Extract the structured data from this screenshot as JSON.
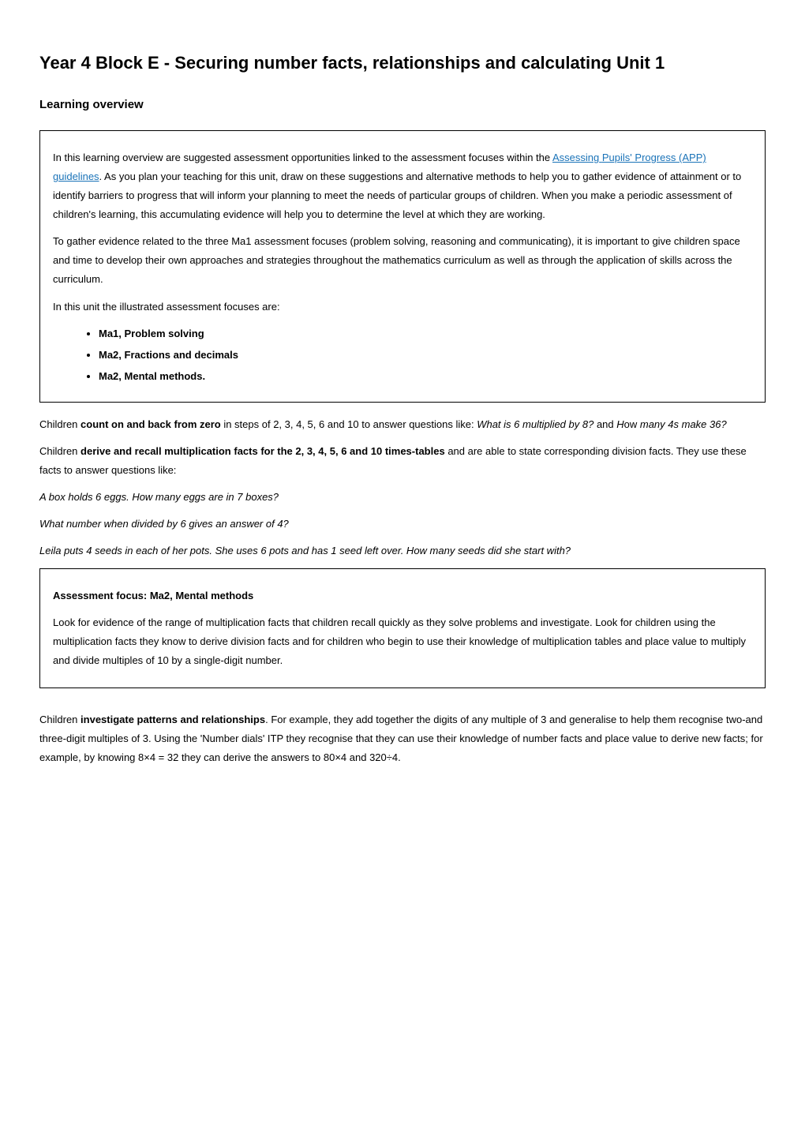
{
  "title": "Year 4 Block E - Securing number facts, relationships and calculating Unit 1",
  "section_heading": "Learning overview",
  "box1": {
    "para1_before_link": "In this learning overview are suggested assessment opportunities linked to the assessment focuses within the ",
    "link_text_line1": "Assessing",
    "link_text_line2": "Pupils' Progress (APP) guidelines",
    "para1_after_link": ". As you plan your teaching for this unit, draw on these suggestions and alternative methods to help you to gather evidence of attainment or to identify barriers to progress that will inform your planning to meet the needs of particular groups of children. When you make a periodic assessment of children's learning, this accumulating evidence will help you to determine the level at which they are working.",
    "para2": "To gather evidence related to the three Ma1 assessment focuses (problem solving, reasoning and communicating), it is important to give children space and time to develop their own approaches and strategies throughout the mathematics curriculum as well as through the application of skills across the curriculum.",
    "para3": "In this unit the illustrated assessment focuses are:",
    "bullets": [
      "Ma1, Problem solving",
      "Ma2, Fractions and decimals",
      "Ma2, Mental methods."
    ]
  },
  "para_count": {
    "prefix": "Children ",
    "bold": "count on and back from zero",
    "mid": " in steps of 2, 3, 4, 5, 6 and 10 to answer questions like: ",
    "italic1": "What is 6 multiplied by 8?",
    "and": " and ",
    "italic2_prefix": "H",
    "italic2_rest": "ow ",
    "italic3": "many 4s make 36?"
  },
  "para_derive": {
    "prefix": "Children ",
    "bold": "derive and recall multiplication facts for the 2, 3, 4, 5, 6 and 10 times-tables",
    "suffix": " and are able to state corresponding division facts. They use these facts to answer questions like:"
  },
  "examples": {
    "line1": "A box holds 6 eggs. How many eggs are in 7 boxes?",
    "line2": "What number when divided by 6 gives an answer of 4?",
    "line3": "Leila puts 4 seeds in each of her pots. She uses 6 pots and has 1 seed left over. How many seeds did she start with?"
  },
  "box2": {
    "heading": "Assessment focus: Ma2, Mental methods",
    "body": "Look for evidence of the range of multiplication facts that children recall quickly as they solve problems and investigate. Look for children using the multiplication facts they know to derive division facts and for children who begin to use their knowledge of multiplication tables and place value to multiply and divide multiples of 10 by a single-digit number."
  },
  "para_investigate": {
    "prefix": "Children ",
    "bold": "investigate patterns and relationships",
    "suffix": ". For example, they add together the digits of any multiple of 3 and generalise to help them recognise two-and three-digit multiples of 3. Using the 'Number dials' ITP they recognise that they can use their knowledge of number facts and place value to derive new facts; for example, by knowing 8×4 = 32 they can derive the answers to 80×4 and 320÷4."
  }
}
